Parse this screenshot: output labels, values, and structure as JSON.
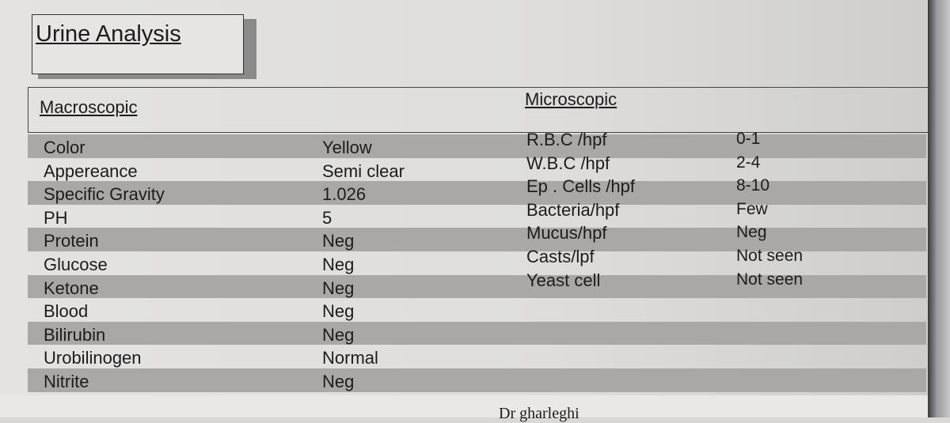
{
  "title": "Urine Analysis",
  "macroscopic": {
    "heading": "Macroscopic",
    "rows": [
      {
        "label": "Color",
        "value": "Yellow"
      },
      {
        "label": "Appereance",
        "value": "Semi clear"
      },
      {
        "label": "Specific Gravity",
        "value": "1.026"
      },
      {
        "label": "PH",
        "value": "5"
      },
      {
        "label": "Protein",
        "value": "Neg"
      },
      {
        "label": "Glucose",
        "value": "Neg"
      },
      {
        "label": "Ketone",
        "value": "Neg"
      },
      {
        "label": "Blood",
        "value": "Neg"
      },
      {
        "label": "Bilirubin",
        "value": "Neg"
      },
      {
        "label": "Urobilinogen",
        "value": "Normal"
      },
      {
        "label": "Nitrite",
        "value": "Neg"
      }
    ]
  },
  "microscopic": {
    "heading": "Microscopic",
    "rows": [
      {
        "label": "R.B.C /hpf",
        "value": "0-1"
      },
      {
        "label": "W.B.C /hpf",
        "value": "2-4"
      },
      {
        "label": "Ep . Cells /hpf",
        "value": "8-10"
      },
      {
        "label": "Bacteria/hpf",
        "value": "Few"
      },
      {
        "label": "Mucus/hpf",
        "value": "Neg"
      },
      {
        "label": "Casts/lpf",
        "value": "Not seen"
      },
      {
        "label": "Yeast cell",
        "value": "Not seen"
      }
    ]
  },
  "signature": "Dr gharleghi"
}
